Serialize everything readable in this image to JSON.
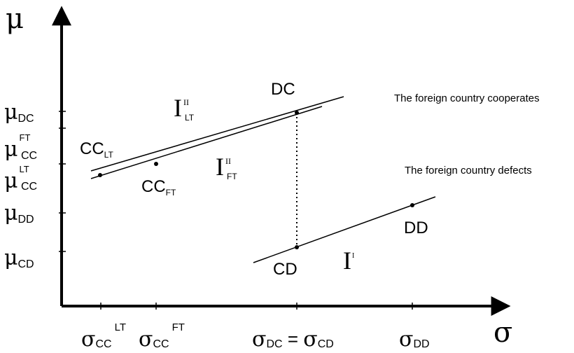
{
  "axes": {
    "y_label": "μ",
    "x_label": "σ"
  },
  "y_ticks": [
    {
      "id": "mu-dc",
      "sym": "μ",
      "sub": "DC",
      "sup": ""
    },
    {
      "id": "mu-ft-cc",
      "sym": "μ",
      "sub": "CC",
      "sup": "FT"
    },
    {
      "id": "mu-lt-cc",
      "sym": "μ",
      "sub": "CC",
      "sup": "LT"
    },
    {
      "id": "mu-dd",
      "sym": "μ",
      "sub": "DD",
      "sup": ""
    },
    {
      "id": "mu-cd",
      "sym": "μ",
      "sub": "CD",
      "sup": ""
    }
  ],
  "x_ticks": [
    {
      "id": "sigma-cc-lt",
      "sym": "σ",
      "sub": "CC",
      "sup": "LT"
    },
    {
      "id": "sigma-cc-ft",
      "sym": "σ",
      "sub": "CC",
      "sup": "FT"
    },
    {
      "id": "sigma-dc-cd",
      "sym": "σ",
      "sub": "DC",
      "eq": " = ",
      "sym2": "σ",
      "sub2": "CD"
    },
    {
      "id": "sigma-dd",
      "sym": "σ",
      "sub": "DD",
      "sup": ""
    }
  ],
  "points": [
    {
      "id": "cc-lt",
      "main": "CC",
      "sub": "LT"
    },
    {
      "id": "cc-ft",
      "main": "CC",
      "sub": "FT"
    },
    {
      "id": "dc",
      "main": "DC",
      "sub": ""
    },
    {
      "id": "cd",
      "main": "CD",
      "sub": ""
    },
    {
      "id": "dd",
      "main": "DD",
      "sub": ""
    }
  ],
  "curves": [
    {
      "id": "i-ii-lt",
      "main": "I",
      "sup": "II",
      "sub": "LT"
    },
    {
      "id": "i-ii-ft",
      "main": "I",
      "sup": "II",
      "sub": "FT"
    },
    {
      "id": "i-i",
      "main": "I",
      "sup": "I",
      "sub": ""
    }
  ],
  "annotations": {
    "cooperates": "The foreign country cooperates",
    "defects": "The foreign country defects"
  }
}
